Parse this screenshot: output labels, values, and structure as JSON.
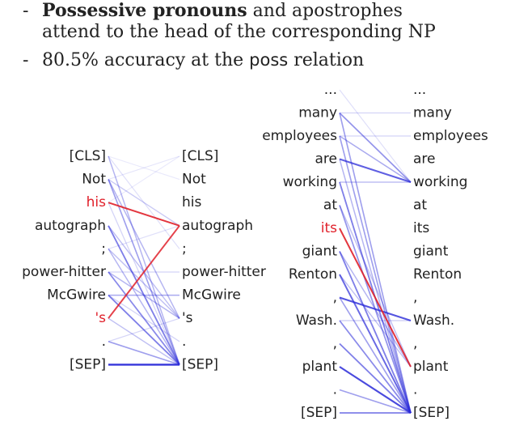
{
  "bullets": {
    "b1_bold": "Possessive pronouns",
    "b1_rest": "and apostrophes",
    "b1_line2": "attend to the head of the corresponding NP",
    "b2_pre": "80.5% accuracy at the",
    "b2_code": "poss",
    "b2_post": "relation",
    "dash": "-"
  },
  "colors": {
    "edge": "#2a2ad8",
    "highlight": "#e0202a",
    "text": "#222222"
  },
  "left_panel": {
    "left_tokens": [
      {
        "t": "[CLS]",
        "hl": false
      },
      {
        "t": "Not",
        "hl": false
      },
      {
        "t": "his",
        "hl": true
      },
      {
        "t": "autograph",
        "hl": false
      },
      {
        "t": ";",
        "hl": false
      },
      {
        "t": "power-hitter",
        "hl": false
      },
      {
        "t": "McGwire",
        "hl": false
      },
      {
        "t": "'s",
        "hl": true
      },
      {
        "t": ".",
        "hl": false
      },
      {
        "t": "[SEP]",
        "hl": false
      }
    ],
    "right_tokens": [
      "[CLS]",
      "Not",
      "his",
      "autograph",
      ";",
      "power-hitter",
      "McGwire",
      "'s",
      ".",
      "[SEP]"
    ],
    "edges": [
      [
        0,
        9,
        0.35
      ],
      [
        1,
        9,
        0.45
      ],
      [
        1,
        7,
        0.35
      ],
      [
        1,
        3,
        0.25
      ],
      [
        3,
        9,
        0.6
      ],
      [
        3,
        7,
        0.3
      ],
      [
        4,
        9,
        0.35
      ],
      [
        4,
        7,
        0.3
      ],
      [
        5,
        9,
        0.55
      ],
      [
        5,
        7,
        0.35
      ],
      [
        6,
        9,
        0.6
      ],
      [
        6,
        6,
        0.4
      ],
      [
        7,
        9,
        0.3
      ],
      [
        8,
        9,
        0.45
      ],
      [
        9,
        9,
        0.95
      ],
      [
        0,
        4,
        0.15
      ],
      [
        2,
        9,
        0.2
      ],
      [
        5,
        5,
        0.2
      ],
      [
        0,
        1,
        0.1
      ],
      [
        1,
        0,
        0.12
      ],
      [
        2,
        0,
        0.1
      ],
      [
        4,
        3,
        0.15
      ],
      [
        6,
        8,
        0.2
      ],
      [
        8,
        7,
        0.2
      ]
    ],
    "red_edges": [
      [
        2,
        3,
        0.9
      ],
      [
        7,
        3,
        0.85
      ]
    ]
  },
  "right_panel": {
    "left_tokens": [
      {
        "t": "...",
        "hl": false
      },
      {
        "t": "many",
        "hl": false
      },
      {
        "t": "employees",
        "hl": false
      },
      {
        "t": "are",
        "hl": false
      },
      {
        "t": "working",
        "hl": false
      },
      {
        "t": "at",
        "hl": false
      },
      {
        "t": "its",
        "hl": true
      },
      {
        "t": "giant",
        "hl": false
      },
      {
        "t": "Renton",
        "hl": false
      },
      {
        "t": ",",
        "hl": false
      },
      {
        "t": "Wash.",
        "hl": false
      },
      {
        "t": ",",
        "hl": false
      },
      {
        "t": "plant",
        "hl": false
      },
      {
        "t": ".",
        "hl": false
      },
      {
        "t": "[SEP]",
        "hl": false
      }
    ],
    "right_tokens": [
      "...",
      "many",
      "employees",
      "are",
      "working",
      "at",
      "its",
      "giant",
      "Renton",
      ",",
      "Wash.",
      ",",
      "plant",
      ".",
      "[SEP]"
    ],
    "edges": [
      [
        1,
        4,
        0.5
      ],
      [
        1,
        14,
        0.45
      ],
      [
        2,
        4,
        0.4
      ],
      [
        2,
        14,
        0.45
      ],
      [
        3,
        4,
        0.75
      ],
      [
        3,
        14,
        0.35
      ],
      [
        4,
        14,
        0.6
      ],
      [
        4,
        4,
        0.3
      ],
      [
        5,
        14,
        0.5
      ],
      [
        5,
        12,
        0.3
      ],
      [
        7,
        14,
        0.6
      ],
      [
        7,
        12,
        0.35
      ],
      [
        8,
        14,
        0.7
      ],
      [
        9,
        14,
        0.45
      ],
      [
        9,
        10,
        0.8
      ],
      [
        10,
        14,
        0.55
      ],
      [
        11,
        14,
        0.6
      ],
      [
        12,
        14,
        0.85
      ],
      [
        13,
        14,
        0.45
      ],
      [
        14,
        14,
        0.6
      ],
      [
        1,
        1,
        0.2
      ],
      [
        2,
        2,
        0.2
      ],
      [
        0,
        4,
        0.15
      ],
      [
        8,
        12,
        0.3
      ],
      [
        10,
        10,
        0.25
      ]
    ],
    "red_edges": [
      [
        6,
        12,
        0.9
      ]
    ]
  }
}
